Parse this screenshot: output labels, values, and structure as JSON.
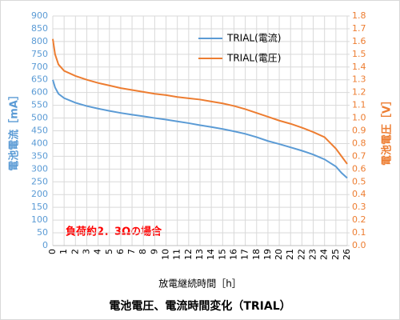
{
  "chart_data": {
    "type": "line",
    "title": "電池電圧、電流時間変化（TRIAL）",
    "x_label": "放電継続時間［h］",
    "y_label": "電池電流［mA］",
    "y2_label": "電池電圧［V］",
    "annotation": "負荷約2．3Ωの場合",
    "x": [
      0,
      0.2,
      0.5,
      1,
      2,
      3,
      4,
      5,
      6,
      7,
      8,
      9,
      10,
      11,
      12,
      13,
      14,
      15,
      16,
      17,
      18,
      19,
      20,
      21,
      22,
      23,
      24,
      25,
      25.5,
      26
    ],
    "series": [
      {
        "name": "TRIAL(電流)",
        "color": "#5b9bd5",
        "axis": "y",
        "values": [
          650,
          620,
          595,
          578,
          560,
          547,
          537,
          528,
          520,
          513,
          507,
          500,
          494,
          487,
          480,
          472,
          465,
          457,
          448,
          438,
          425,
          410,
          398,
          385,
          372,
          357,
          338,
          310,
          285,
          265
        ]
      },
      {
        "name": "TRIAL(電圧)",
        "color": "#ed7d31",
        "axis": "y2",
        "values": [
          1.62,
          1.5,
          1.42,
          1.37,
          1.33,
          1.3,
          1.275,
          1.255,
          1.235,
          1.22,
          1.205,
          1.19,
          1.18,
          1.165,
          1.155,
          1.145,
          1.13,
          1.115,
          1.095,
          1.07,
          1.04,
          1.01,
          0.98,
          0.955,
          0.925,
          0.89,
          0.85,
          0.76,
          0.7,
          0.64
        ]
      }
    ],
    "xlim": [
      0,
      26
    ],
    "xticks": [
      0,
      1,
      2,
      3,
      4,
      5,
      6,
      7,
      8,
      9,
      10,
      11,
      12,
      13,
      14,
      15,
      16,
      17,
      18,
      19,
      20,
      21,
      22,
      23,
      24,
      25,
      26
    ],
    "ylim": [
      0,
      900
    ],
    "yticks": [
      0,
      50,
      100,
      150,
      200,
      250,
      300,
      350,
      400,
      450,
      500,
      550,
      600,
      650,
      700,
      750,
      800,
      850,
      900
    ],
    "y2lim": [
      0,
      1.8
    ],
    "y2ticks": [
      {
        "value": 0,
        "label": "0.0"
      },
      0.1,
      0.2,
      0.3,
      0.4,
      0.5,
      0.6,
      0.7,
      0.8,
      0.9,
      {
        "value": 1,
        "label": "1.0"
      },
      1.1,
      1.2,
      1.3,
      1.4,
      1.5,
      1.6,
      1.7,
      1.8
    ],
    "grid": true
  }
}
